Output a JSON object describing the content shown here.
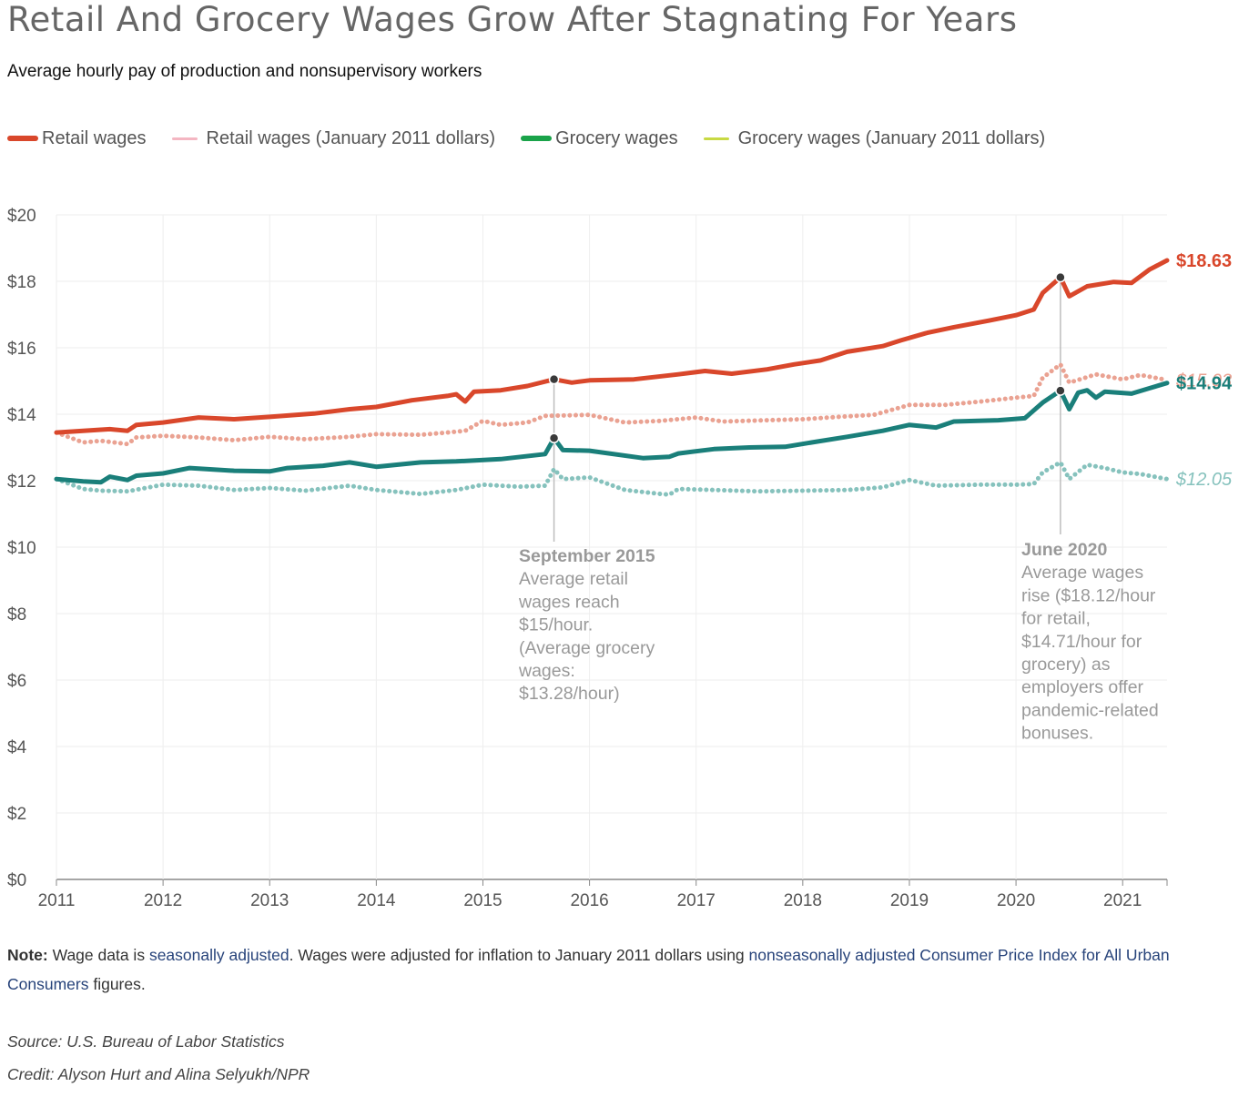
{
  "header": {
    "title": "Retail And Grocery Wages Grow After Stagnating For Years",
    "subtitle": "Average hourly pay of production and nonsupervisory workers"
  },
  "legend": [
    {
      "label": "Retail wages",
      "color": "#d9472b"
    },
    {
      "label": "Retail wages (January 2011 dollars)",
      "color": "#f4b6c2"
    },
    {
      "label": "Grocery wages",
      "color": "#1aa34a"
    },
    {
      "label": "Grocery wages (January 2011 dollars)",
      "color": "#c8d943"
    }
  ],
  "chart_data": {
    "type": "line",
    "x_start": "2011-01",
    "x_end": "2021-06",
    "xticks": [
      "2011",
      "2012",
      "2013",
      "2014",
      "2015",
      "2016",
      "2017",
      "2018",
      "2019",
      "2020",
      "2021"
    ],
    "yticks": [
      "$0",
      "$2",
      "$4",
      "$6",
      "$8",
      "$10",
      "$12",
      "$14",
      "$16",
      "$18",
      "$20"
    ],
    "ylim": [
      0,
      20
    ],
    "grid": true,
    "series": [
      {
        "name": "Retail wages",
        "color": "#d9472b",
        "style": "solid",
        "end_label": "$18.63",
        "points": [
          [
            "2011-01",
            13.45
          ],
          [
            "2011-07",
            13.55
          ],
          [
            "2011-09",
            13.5
          ],
          [
            "2011-10",
            13.68
          ],
          [
            "2012-01",
            13.75
          ],
          [
            "2012-05",
            13.9
          ],
          [
            "2012-09",
            13.85
          ],
          [
            "2013-01",
            13.92
          ],
          [
            "2013-06",
            14.02
          ],
          [
            "2013-10",
            14.15
          ],
          [
            "2014-01",
            14.22
          ],
          [
            "2014-05",
            14.42
          ],
          [
            "2014-09",
            14.55
          ],
          [
            "2014-10",
            14.6
          ],
          [
            "2014-11",
            14.38
          ],
          [
            "2014-12",
            14.68
          ],
          [
            "2015-03",
            14.72
          ],
          [
            "2015-06",
            14.85
          ],
          [
            "2015-09",
            15.05
          ],
          [
            "2015-11",
            14.95
          ],
          [
            "2016-01",
            15.02
          ],
          [
            "2016-06",
            15.05
          ],
          [
            "2016-11",
            15.2
          ],
          [
            "2017-02",
            15.3
          ],
          [
            "2017-05",
            15.22
          ],
          [
            "2017-09",
            15.35
          ],
          [
            "2017-12",
            15.5
          ],
          [
            "2018-03",
            15.62
          ],
          [
            "2018-06",
            15.88
          ],
          [
            "2018-10",
            16.05
          ],
          [
            "2018-12",
            16.22
          ],
          [
            "2019-03",
            16.45
          ],
          [
            "2019-06",
            16.62
          ],
          [
            "2019-10",
            16.82
          ],
          [
            "2020-01",
            16.98
          ],
          [
            "2020-03",
            17.15
          ],
          [
            "2020-04",
            17.65
          ],
          [
            "2020-06",
            18.12
          ],
          [
            "2020-07",
            17.55
          ],
          [
            "2020-09",
            17.85
          ],
          [
            "2020-12",
            17.98
          ],
          [
            "2021-02",
            17.95
          ],
          [
            "2021-04",
            18.35
          ],
          [
            "2021-06",
            18.63
          ]
        ]
      },
      {
        "name": "Retail wages (January 2011 dollars)",
        "color": "#eaa292",
        "style": "dotted",
        "end_label": "$15.03",
        "points": [
          [
            "2011-01",
            13.45
          ],
          [
            "2011-04",
            13.15
          ],
          [
            "2011-06",
            13.2
          ],
          [
            "2011-09",
            13.1
          ],
          [
            "2011-10",
            13.3
          ],
          [
            "2012-01",
            13.35
          ],
          [
            "2012-05",
            13.3
          ],
          [
            "2012-09",
            13.22
          ],
          [
            "2013-01",
            13.32
          ],
          [
            "2013-05",
            13.25
          ],
          [
            "2013-10",
            13.32
          ],
          [
            "2014-01",
            13.4
          ],
          [
            "2014-06",
            13.38
          ],
          [
            "2014-09",
            13.45
          ],
          [
            "2014-11",
            13.5
          ],
          [
            "2015-01",
            13.8
          ],
          [
            "2015-03",
            13.68
          ],
          [
            "2015-06",
            13.75
          ],
          [
            "2015-08",
            13.95
          ],
          [
            "2016-01",
            13.98
          ],
          [
            "2016-05",
            13.75
          ],
          [
            "2016-09",
            13.8
          ],
          [
            "2017-01",
            13.9
          ],
          [
            "2017-04",
            13.78
          ],
          [
            "2017-09",
            13.82
          ],
          [
            "2018-01",
            13.85
          ],
          [
            "2018-05",
            13.92
          ],
          [
            "2018-09",
            13.98
          ],
          [
            "2019-01",
            14.28
          ],
          [
            "2019-05",
            14.28
          ],
          [
            "2019-09",
            14.38
          ],
          [
            "2020-01",
            14.5
          ],
          [
            "2020-03",
            14.55
          ],
          [
            "2020-04",
            15.1
          ],
          [
            "2020-06",
            15.5
          ],
          [
            "2020-07",
            14.95
          ],
          [
            "2020-10",
            15.2
          ],
          [
            "2021-01",
            15.05
          ],
          [
            "2021-03",
            15.18
          ],
          [
            "2021-06",
            15.03
          ]
        ]
      },
      {
        "name": "Grocery wages",
        "color": "#1a7f7a",
        "style": "solid",
        "end_label": "$14.94",
        "points": [
          [
            "2011-01",
            12.05
          ],
          [
            "2011-04",
            11.98
          ],
          [
            "2011-06",
            11.95
          ],
          [
            "2011-07",
            12.12
          ],
          [
            "2011-09",
            12.02
          ],
          [
            "2011-10",
            12.15
          ],
          [
            "2012-01",
            12.22
          ],
          [
            "2012-04",
            12.38
          ],
          [
            "2012-09",
            12.3
          ],
          [
            "2013-01",
            12.28
          ],
          [
            "2013-03",
            12.38
          ],
          [
            "2013-07",
            12.45
          ],
          [
            "2013-10",
            12.55
          ],
          [
            "2014-01",
            12.42
          ],
          [
            "2014-06",
            12.55
          ],
          [
            "2014-10",
            12.58
          ],
          [
            "2015-03",
            12.65
          ],
          [
            "2015-08",
            12.8
          ],
          [
            "2015-09",
            13.28
          ],
          [
            "2015-10",
            12.92
          ],
          [
            "2016-01",
            12.9
          ],
          [
            "2016-07",
            12.68
          ],
          [
            "2016-10",
            12.72
          ],
          [
            "2016-11",
            12.82
          ],
          [
            "2017-03",
            12.95
          ],
          [
            "2017-07",
            13.0
          ],
          [
            "2017-11",
            13.02
          ],
          [
            "2018-02",
            13.15
          ],
          [
            "2018-06",
            13.32
          ],
          [
            "2018-10",
            13.5
          ],
          [
            "2019-01",
            13.68
          ],
          [
            "2019-04",
            13.6
          ],
          [
            "2019-06",
            13.78
          ],
          [
            "2019-11",
            13.82
          ],
          [
            "2020-02",
            13.88
          ],
          [
            "2020-04",
            14.35
          ],
          [
            "2020-06",
            14.71
          ],
          [
            "2020-07",
            14.15
          ],
          [
            "2020-08",
            14.65
          ],
          [
            "2020-09",
            14.72
          ],
          [
            "2020-10",
            14.5
          ],
          [
            "2020-11",
            14.68
          ],
          [
            "2021-02",
            14.62
          ],
          [
            "2021-04",
            14.78
          ],
          [
            "2021-06",
            14.94
          ]
        ]
      },
      {
        "name": "Grocery wages (January 2011 dollars)",
        "color": "#86c2bd",
        "style": "dotted",
        "end_label": "$12.05",
        "points": [
          [
            "2011-01",
            12.05
          ],
          [
            "2011-04",
            11.75
          ],
          [
            "2011-06",
            11.7
          ],
          [
            "2011-09",
            11.68
          ],
          [
            "2012-01",
            11.88
          ],
          [
            "2012-05",
            11.85
          ],
          [
            "2012-09",
            11.72
          ],
          [
            "2013-01",
            11.78
          ],
          [
            "2013-05",
            11.7
          ],
          [
            "2013-10",
            11.85
          ],
          [
            "2014-01",
            11.72
          ],
          [
            "2014-06",
            11.6
          ],
          [
            "2014-10",
            11.72
          ],
          [
            "2015-01",
            11.88
          ],
          [
            "2015-05",
            11.82
          ],
          [
            "2015-08",
            11.85
          ],
          [
            "2015-09",
            12.35
          ],
          [
            "2015-10",
            12.05
          ],
          [
            "2016-01",
            12.1
          ],
          [
            "2016-05",
            11.72
          ],
          [
            "2016-09",
            11.6
          ],
          [
            "2016-10",
            11.58
          ],
          [
            "2016-11",
            11.75
          ],
          [
            "2017-03",
            11.72
          ],
          [
            "2017-08",
            11.68
          ],
          [
            "2018-01",
            11.7
          ],
          [
            "2018-06",
            11.72
          ],
          [
            "2018-10",
            11.8
          ],
          [
            "2019-01",
            12.02
          ],
          [
            "2019-04",
            11.85
          ],
          [
            "2019-09",
            11.88
          ],
          [
            "2020-01",
            11.88
          ],
          [
            "2020-03",
            11.9
          ],
          [
            "2020-04",
            12.25
          ],
          [
            "2020-06",
            12.55
          ],
          [
            "2020-07",
            12.05
          ],
          [
            "2020-09",
            12.48
          ],
          [
            "2020-11",
            12.38
          ],
          [
            "2021-01",
            12.25
          ],
          [
            "2021-03",
            12.2
          ],
          [
            "2021-06",
            12.05
          ]
        ]
      }
    ],
    "annotations": [
      {
        "date": "2015-09",
        "retail": 15.05,
        "grocery": 13.28,
        "heading": "September 2015",
        "lines": [
          "Average retail",
          "wages reach",
          "$15/hour.",
          "(Average grocery",
          "wages:",
          "$13.28/hour)"
        ]
      },
      {
        "date": "2020-06",
        "retail": 18.12,
        "grocery": 14.71,
        "heading": "June 2020",
        "lines": [
          "Average wages",
          "rise ($18.12/hour",
          "for retail,",
          "$14.71/hour for",
          "grocery) as",
          "employers offer",
          "pandemic-related",
          "bonuses."
        ]
      }
    ]
  },
  "footer": {
    "note_label": "Note:",
    "note_1": " Wage data is ",
    "note_link_1": "seasonally adjusted",
    "note_2": ". Wages were adjusted for inflation to January 2011 dollars using ",
    "note_link_2": "nonseasonally adjusted Consumer Price Index for All Urban Consumers",
    "note_3": " figures.",
    "source": "Source: U.S. Bureau of Labor Statistics",
    "credit": "Credit: Alyson Hurt and Alina Selyukh/NPR"
  }
}
